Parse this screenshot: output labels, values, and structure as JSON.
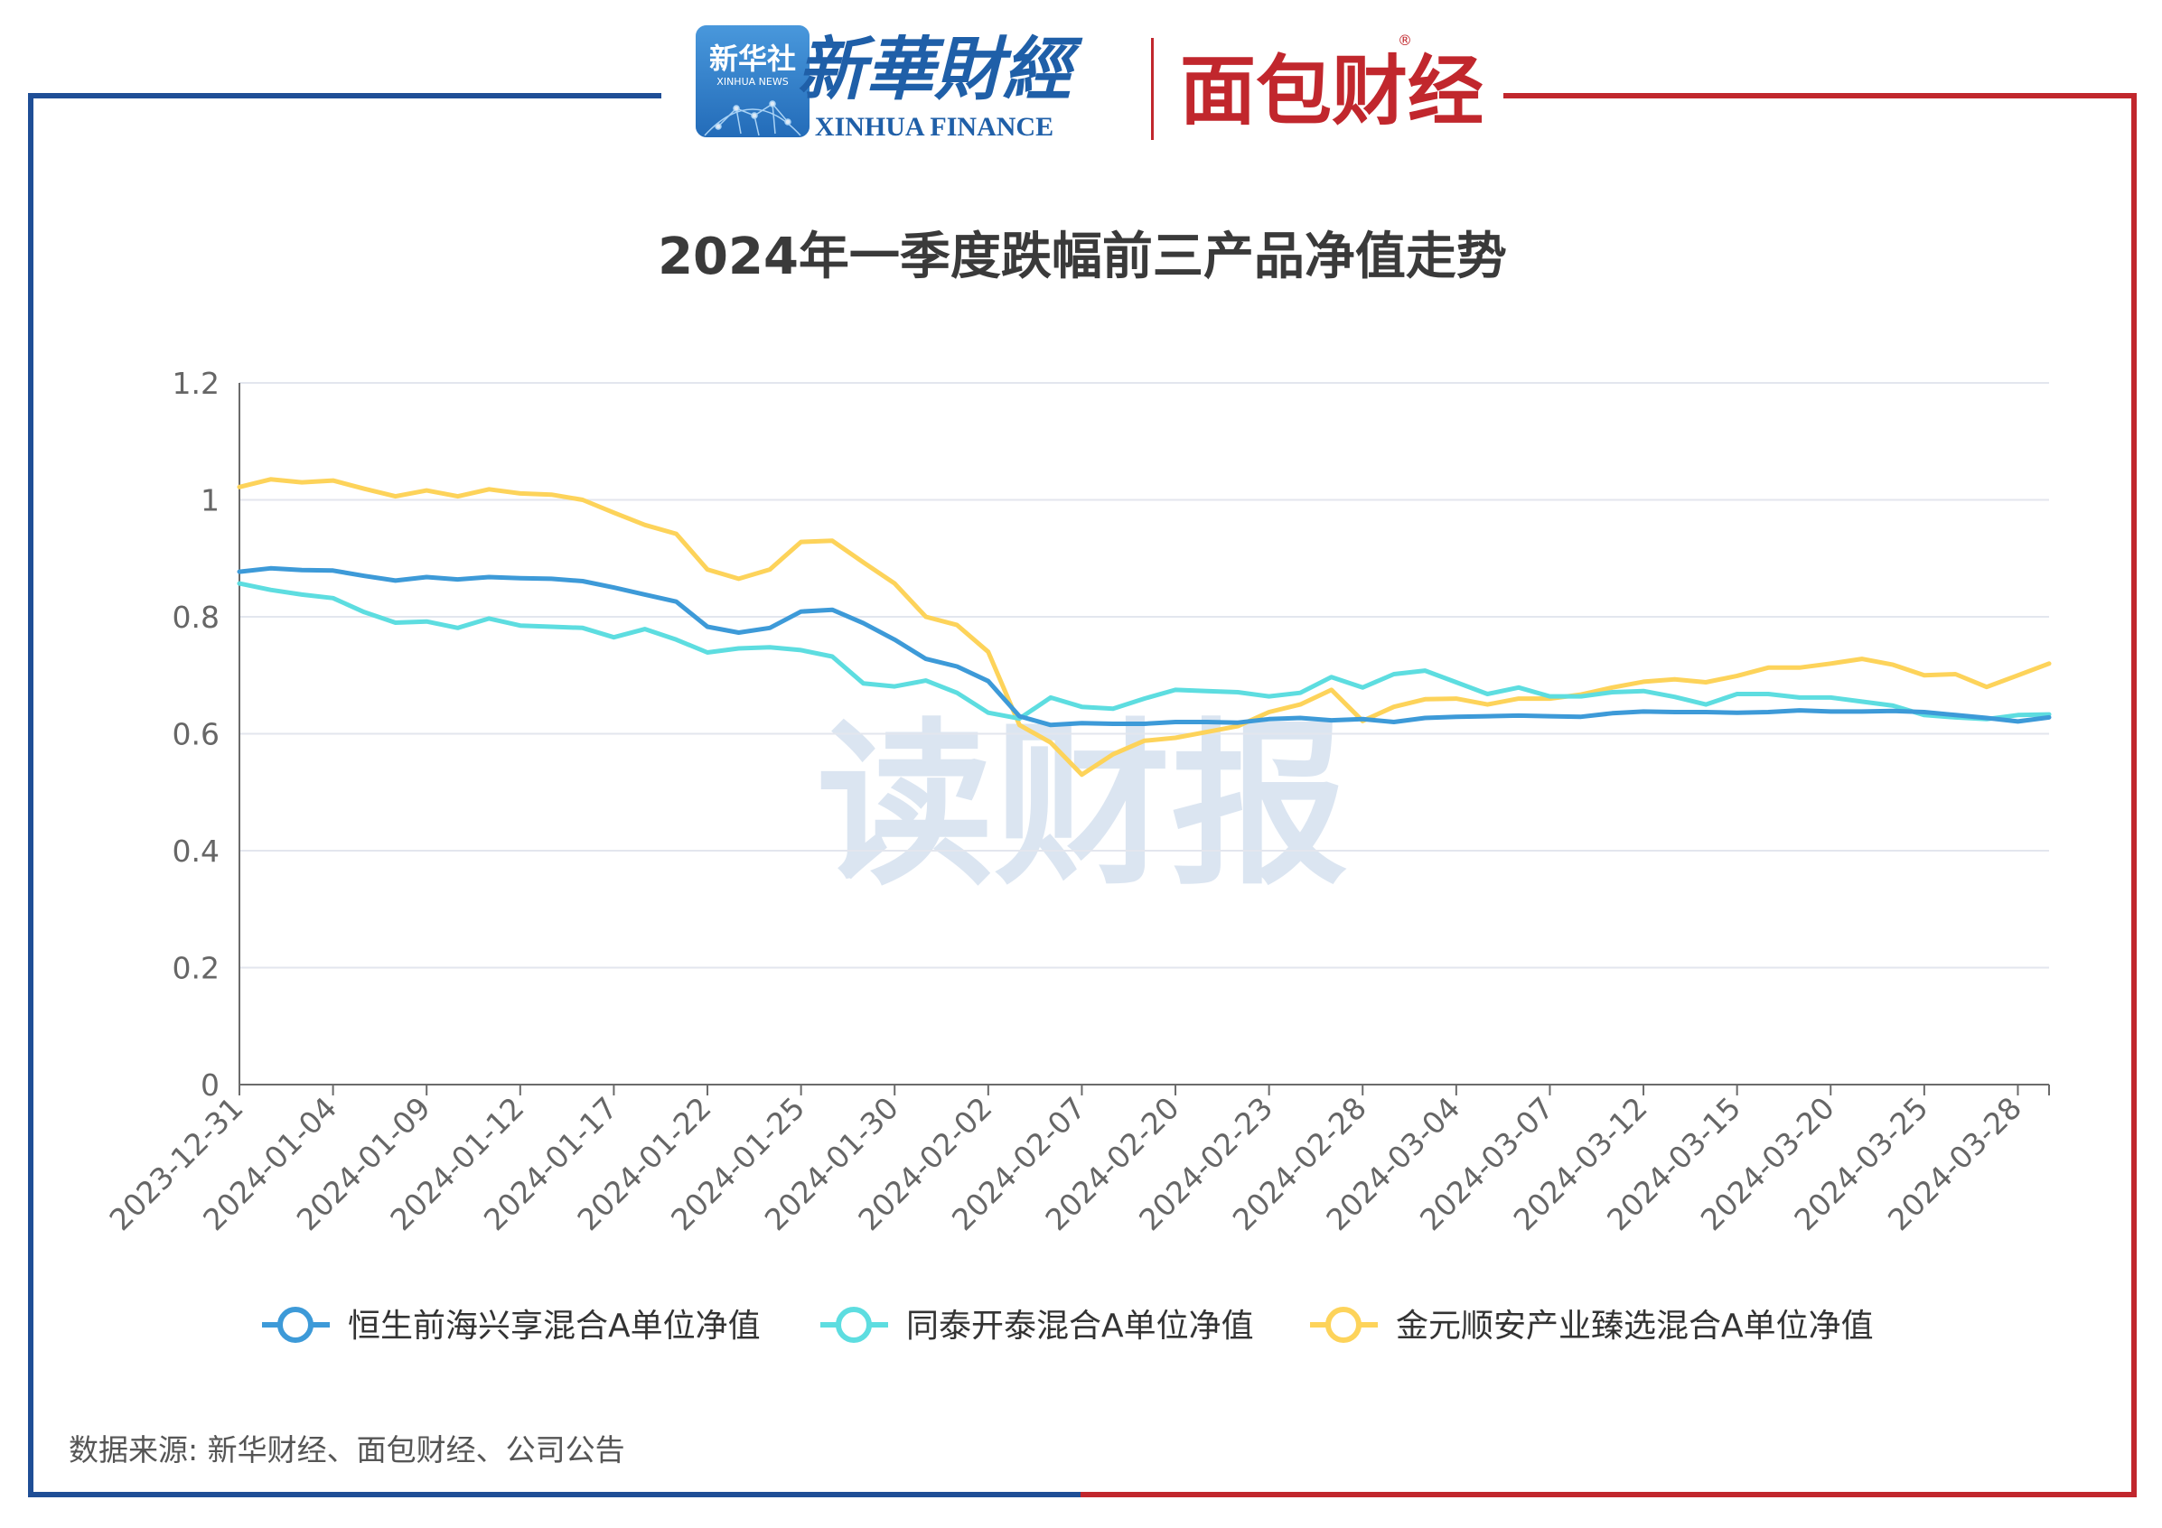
{
  "header": {
    "xinhua_news_logo_text": "新华社",
    "xinhua_news_logo_sub": "XINHUA NEWS",
    "xinhua_finance_cn": "新華財經",
    "xinhua_finance_en": "XINHUA FINANCE",
    "mianbao_logo": "面包财经",
    "registered_mark": "®"
  },
  "watermark": "读财报",
  "colors": {
    "frame_left": "#1f4e96",
    "frame_right": "#c1272d",
    "series_1": "#3d9ad8",
    "series_2": "#5ddde0",
    "series_3": "#fdd35a"
  },
  "source": "数据来源: 新华财经、面包财经、公司公告",
  "chart_data": {
    "type": "line",
    "title": "2024年一季度跌幅前三产品净值走势",
    "ylim": [
      0,
      1.2
    ],
    "y_ticks": [
      "0",
      "0.2",
      "0.4",
      "0.6",
      "0.8",
      "1",
      "1.2"
    ],
    "x_tick_labels": [
      "2023-12-31",
      "2024-01-04",
      "2024-01-09",
      "2024-01-12",
      "2024-01-17",
      "2024-01-22",
      "2024-01-25",
      "2024-01-30",
      "2024-02-02",
      "2024-02-07",
      "2024-02-20",
      "2024-02-23",
      "2024-02-28",
      "2024-03-04",
      "2024-03-07",
      "2024-03-12",
      "2024-03-15",
      "2024-03-20",
      "2024-03-25",
      "2024-03-28"
    ],
    "x": [
      "2023-12-31",
      "2024-01-02",
      "2024-01-03",
      "2024-01-04",
      "2024-01-05",
      "2024-01-08",
      "2024-01-09",
      "2024-01-10",
      "2024-01-11",
      "2024-01-12",
      "2024-01-15",
      "2024-01-16",
      "2024-01-17",
      "2024-01-18",
      "2024-01-19",
      "2024-01-22",
      "2024-01-23",
      "2024-01-24",
      "2024-01-25",
      "2024-01-26",
      "2024-01-29",
      "2024-01-30",
      "2024-01-31",
      "2024-02-01",
      "2024-02-02",
      "2024-02-05",
      "2024-02-06",
      "2024-02-07",
      "2024-02-08",
      "2024-02-19",
      "2024-02-20",
      "2024-02-21",
      "2024-02-22",
      "2024-02-23",
      "2024-02-26",
      "2024-02-27",
      "2024-02-28",
      "2024-02-29",
      "2024-03-01",
      "2024-03-04",
      "2024-03-05",
      "2024-03-06",
      "2024-03-07",
      "2024-03-08",
      "2024-03-11",
      "2024-03-12",
      "2024-03-13",
      "2024-03-14",
      "2024-03-15",
      "2024-03-18",
      "2024-03-19",
      "2024-03-20",
      "2024-03-21",
      "2024-03-22",
      "2024-03-25",
      "2024-03-26",
      "2024-03-27",
      "2024-03-28",
      "2024-03-29"
    ],
    "grid": true,
    "legend_position": "bottom",
    "series": [
      {
        "name": "恒生前海兴享混合A单位净值",
        "values": [
          0.877,
          0.883,
          0.88,
          0.879,
          0.87,
          0.862,
          0.868,
          0.864,
          0.868,
          0.866,
          0.865,
          0.861,
          0.85,
          0.838,
          0.826,
          0.783,
          0.773,
          0.781,
          0.809,
          0.812,
          0.789,
          0.761,
          0.728,
          0.715,
          0.69,
          0.63,
          0.615,
          0.618,
          0.617,
          0.617,
          0.62,
          0.62,
          0.619,
          0.625,
          0.627,
          0.623,
          0.625,
          0.62,
          0.627,
          0.629,
          0.63,
          0.631,
          0.63,
          0.629,
          0.635,
          0.638,
          0.637,
          0.637,
          0.636,
          0.637,
          0.64,
          0.638,
          0.638,
          0.639,
          0.637,
          0.632,
          0.627,
          0.621,
          0.628
        ]
      },
      {
        "name": "同泰开泰混合A单位净值",
        "values": [
          0.857,
          0.846,
          0.838,
          0.832,
          0.808,
          0.79,
          0.792,
          0.781,
          0.797,
          0.785,
          0.783,
          0.781,
          0.765,
          0.779,
          0.761,
          0.739,
          0.746,
          0.748,
          0.743,
          0.732,
          0.686,
          0.681,
          0.691,
          0.67,
          0.636,
          0.626,
          0.662,
          0.646,
          0.643,
          0.66,
          0.675,
          0.673,
          0.671,
          0.664,
          0.67,
          0.697,
          0.679,
          0.702,
          0.708,
          0.688,
          0.668,
          0.679,
          0.664,
          0.664,
          0.671,
          0.673,
          0.663,
          0.65,
          0.668,
          0.668,
          0.662,
          0.662,
          0.655,
          0.648,
          0.632,
          0.628,
          0.625,
          0.632,
          0.633
        ]
      },
      {
        "name": "金元顺安产业臻选混合A单位净值",
        "values": [
          1.022,
          1.035,
          1.03,
          1.033,
          1.019,
          1.006,
          1.016,
          1.006,
          1.018,
          1.011,
          1.009,
          1.0,
          0.978,
          0.957,
          0.942,
          0.881,
          0.865,
          0.881,
          0.928,
          0.93,
          0.893,
          0.857,
          0.8,
          0.786,
          0.74,
          0.615,
          0.585,
          0.53,
          0.565,
          0.588,
          0.593,
          0.603,
          0.613,
          0.637,
          0.65,
          0.675,
          0.622,
          0.646,
          0.659,
          0.66,
          0.65,
          0.66,
          0.66,
          0.667,
          0.679,
          0.689,
          0.693,
          0.688,
          0.699,
          0.713,
          0.713,
          0.72,
          0.728,
          0.718,
          0.7,
          0.702,
          0.68,
          0.7,
          0.72
        ]
      }
    ]
  }
}
